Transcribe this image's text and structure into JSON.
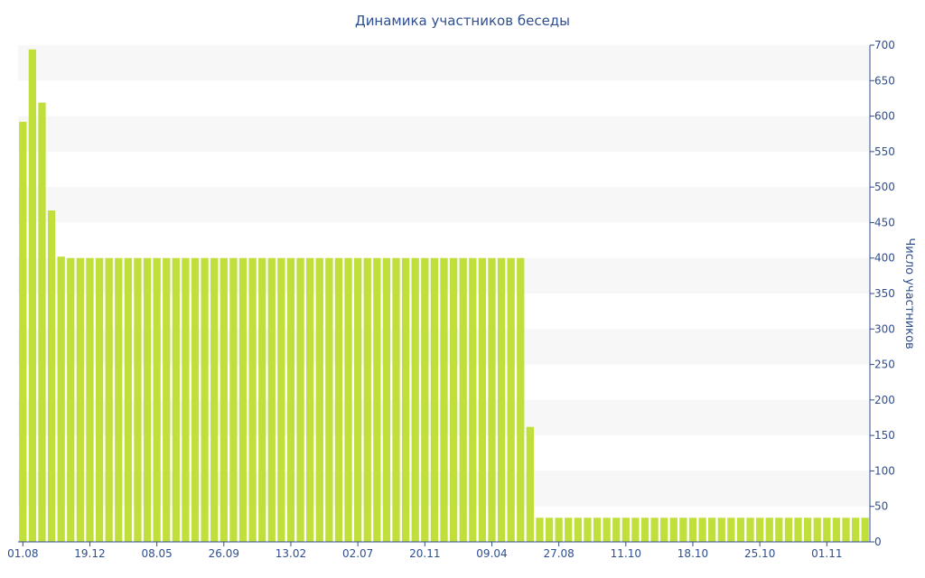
{
  "chart_data": {
    "type": "bar",
    "title": "Динамика участников беседы",
    "ylabel": "Число участников",
    "xlabel": "",
    "ylim": [
      0,
      700
    ],
    "y_ticks": [
      0,
      50,
      100,
      150,
      200,
      250,
      300,
      350,
      400,
      450,
      500,
      550,
      600,
      650,
      700
    ],
    "y_axis_position": "right",
    "x_tick_labels": [
      "01.08",
      "19.12",
      "08.05",
      "26.09",
      "13.02",
      "02.07",
      "20.11",
      "09.04",
      "27.08",
      "11.10",
      "18.10",
      "25.10",
      "01.11"
    ],
    "x_tick_bar_index": [
      0,
      7,
      14,
      21,
      28,
      35,
      42,
      49,
      56,
      63,
      70,
      77,
      84
    ],
    "grid": "horizontal alternating bands",
    "colors": {
      "bar": "#c1df3a",
      "band": "#f7f7f7",
      "text": "#2f4f8f",
      "axis": "#2f4f8f"
    },
    "values": [
      592,
      694,
      619,
      467,
      402,
      400,
      400,
      400,
      400,
      400,
      400,
      400,
      400,
      400,
      400,
      400,
      400,
      400,
      400,
      400,
      400,
      400,
      400,
      400,
      400,
      400,
      400,
      400,
      400,
      400,
      400,
      400,
      400,
      400,
      400,
      400,
      400,
      400,
      400,
      400,
      400,
      400,
      400,
      400,
      400,
      400,
      400,
      400,
      400,
      400,
      400,
      400,
      400,
      162,
      34,
      34,
      34,
      34,
      34,
      34,
      34,
      34,
      34,
      34,
      34,
      34,
      34,
      34,
      34,
      34,
      34,
      34,
      34,
      34,
      34,
      34,
      34,
      34,
      34,
      34,
      34,
      34,
      34,
      34,
      34,
      34,
      34,
      34,
      34
    ]
  }
}
